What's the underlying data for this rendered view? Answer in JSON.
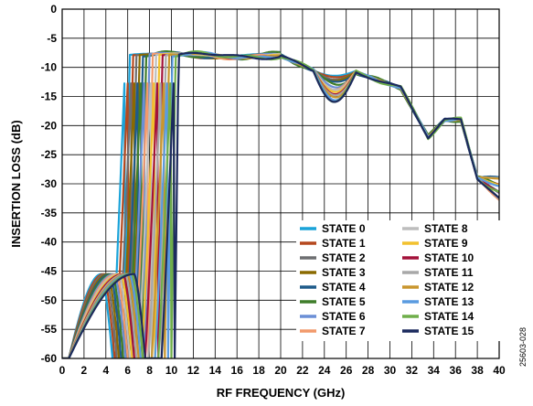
{
  "figure_id": "25603-028",
  "chart_data": {
    "type": "line",
    "xlabel": "RF FREQUENCY (GHz)",
    "ylabel": "INSERTION LOSS (dB)",
    "xlim": [
      0,
      40
    ],
    "ylim": [
      -60,
      0
    ],
    "xticks": [
      0,
      2,
      4,
      6,
      8,
      10,
      12,
      14,
      16,
      18,
      20,
      22,
      24,
      26,
      28,
      30,
      32,
      34,
      36,
      38,
      40
    ],
    "yticks": [
      0,
      -5,
      -10,
      -15,
      -20,
      -25,
      -30,
      -35,
      -40,
      -45,
      -50,
      -55,
      -60
    ],
    "grid": true,
    "legend_position": "bottom-right",
    "series": [
      {
        "name": "STATE 0",
        "color": "#1aa3d9",
        "passband_edge_ghz": 5.8,
        "lower_lobe_peak_ghz": 3.6,
        "notch_ghz": 4.6,
        "mid_dip_db": -11.5
      },
      {
        "name": "STATE 1",
        "color": "#b5481e",
        "passband_edge_ghz": 6.1,
        "lower_lobe_peak_ghz": 3.8,
        "notch_ghz": 4.8,
        "mid_dip_db": -11.8
      },
      {
        "name": "STATE 2",
        "color": "#6d6e71",
        "passband_edge_ghz": 6.4,
        "lower_lobe_peak_ghz": 4.0,
        "notch_ghz": 5.0,
        "mid_dip_db": -12.1
      },
      {
        "name": "STATE 3",
        "color": "#8a6a00",
        "passband_edge_ghz": 6.7,
        "lower_lobe_peak_ghz": 4.2,
        "notch_ghz": 5.2,
        "mid_dip_db": -12.4
      },
      {
        "name": "STATE 4",
        "color": "#1f5b8a",
        "passband_edge_ghz": 7.0,
        "lower_lobe_peak_ghz": 4.4,
        "notch_ghz": 5.4,
        "mid_dip_db": -12.7
      },
      {
        "name": "STATE 5",
        "color": "#3f7d2a",
        "passband_edge_ghz": 7.3,
        "lower_lobe_peak_ghz": 4.6,
        "notch_ghz": 5.6,
        "mid_dip_db": -13.0
      },
      {
        "name": "STATE 6",
        "color": "#6b8fd6",
        "passband_edge_ghz": 7.6,
        "lower_lobe_peak_ghz": 4.8,
        "notch_ghz": 5.8,
        "mid_dip_db": -13.3
      },
      {
        "name": "STATE 7",
        "color": "#f29a6b",
        "passband_edge_ghz": 7.9,
        "lower_lobe_peak_ghz": 5.0,
        "notch_ghz": 6.0,
        "mid_dip_db": -13.6
      },
      {
        "name": "STATE 8",
        "color": "#bdbdbd",
        "passband_edge_ghz": 8.2,
        "lower_lobe_peak_ghz": 5.2,
        "notch_ghz": 6.2,
        "mid_dip_db": -13.9
      },
      {
        "name": "STATE 9",
        "color": "#f2c12e",
        "passband_edge_ghz": 8.5,
        "lower_lobe_peak_ghz": 5.4,
        "notch_ghz": 6.4,
        "mid_dip_db": -14.2
      },
      {
        "name": "STATE 10",
        "color": "#a3123a",
        "passband_edge_ghz": 8.8,
        "lower_lobe_peak_ghz": 5.6,
        "notch_ghz": 6.6,
        "mid_dip_db": -14.5
      },
      {
        "name": "STATE 11",
        "color": "#a8a8a8",
        "passband_edge_ghz": 9.1,
        "lower_lobe_peak_ghz": 5.8,
        "notch_ghz": 6.8,
        "mid_dip_db": -14.8
      },
      {
        "name": "STATE 12",
        "color": "#c9962e",
        "passband_edge_ghz": 9.4,
        "lower_lobe_peak_ghz": 6.0,
        "notch_ghz": 7.0,
        "mid_dip_db": -15.1
      },
      {
        "name": "STATE 13",
        "color": "#5a9be0",
        "passband_edge_ghz": 9.7,
        "lower_lobe_peak_ghz": 6.2,
        "notch_ghz": 7.2,
        "mid_dip_db": -15.4
      },
      {
        "name": "STATE 14",
        "color": "#6fae4a",
        "passband_edge_ghz": 10.0,
        "lower_lobe_peak_ghz": 6.4,
        "notch_ghz": 7.4,
        "mid_dip_db": -15.7
      },
      {
        "name": "STATE 15",
        "color": "#1c2a5e",
        "passband_edge_ghz": 10.3,
        "lower_lobe_peak_ghz": 6.6,
        "notch_ghz": 7.6,
        "mid_dip_db": -16.0
      }
    ]
  }
}
